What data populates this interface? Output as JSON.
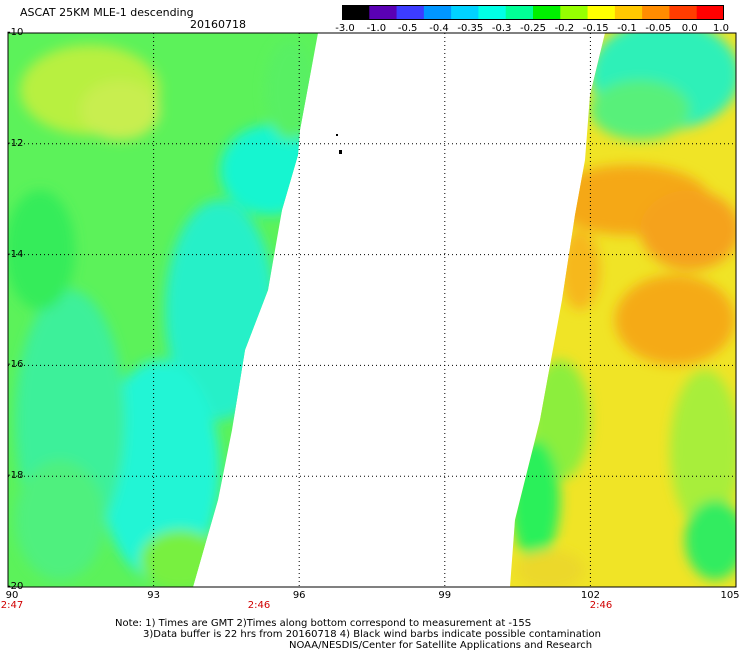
{
  "header": {
    "title": "ASCAT 25KM MLE-1 descending",
    "date": "20160718"
  },
  "colorbar": {
    "ticks": [
      "-3.0",
      "-1.0",
      "-0.5",
      "-0.4",
      "-0.35",
      "-0.3",
      "-0.25",
      "-0.2",
      "-0.15",
      "-0.1",
      "-0.05",
      "0.0",
      "1.0"
    ],
    "colors": [
      "#000000",
      "#5a00b4",
      "#3c3cff",
      "#0096ff",
      "#00d2ff",
      "#00ffe6",
      "#00ff96",
      "#00f000",
      "#96ff00",
      "#ffff00",
      "#ffc800",
      "#ff8c00",
      "#ff3c00",
      "#ff0000"
    ]
  },
  "map": {
    "lat_labels": [
      "-10",
      "-12",
      "-14",
      "-16",
      "-18",
      "-20"
    ],
    "lon_labels": [
      "90",
      "93",
      "96",
      "99",
      "102",
      "105"
    ],
    "time_labels": [
      "2:47",
      "2:46",
      "2:46"
    ]
  },
  "notes": {
    "line1": "Note: 1) Times are GMT 2)Times along bottom correspond to measurement at -15S",
    "line2": "3)Data buffer is 22 hrs from 20160718 4) Black wind barbs indicate possible contamination",
    "line3": "NOAA/NESDIS/Center for Satellite Applications and Research"
  }
}
